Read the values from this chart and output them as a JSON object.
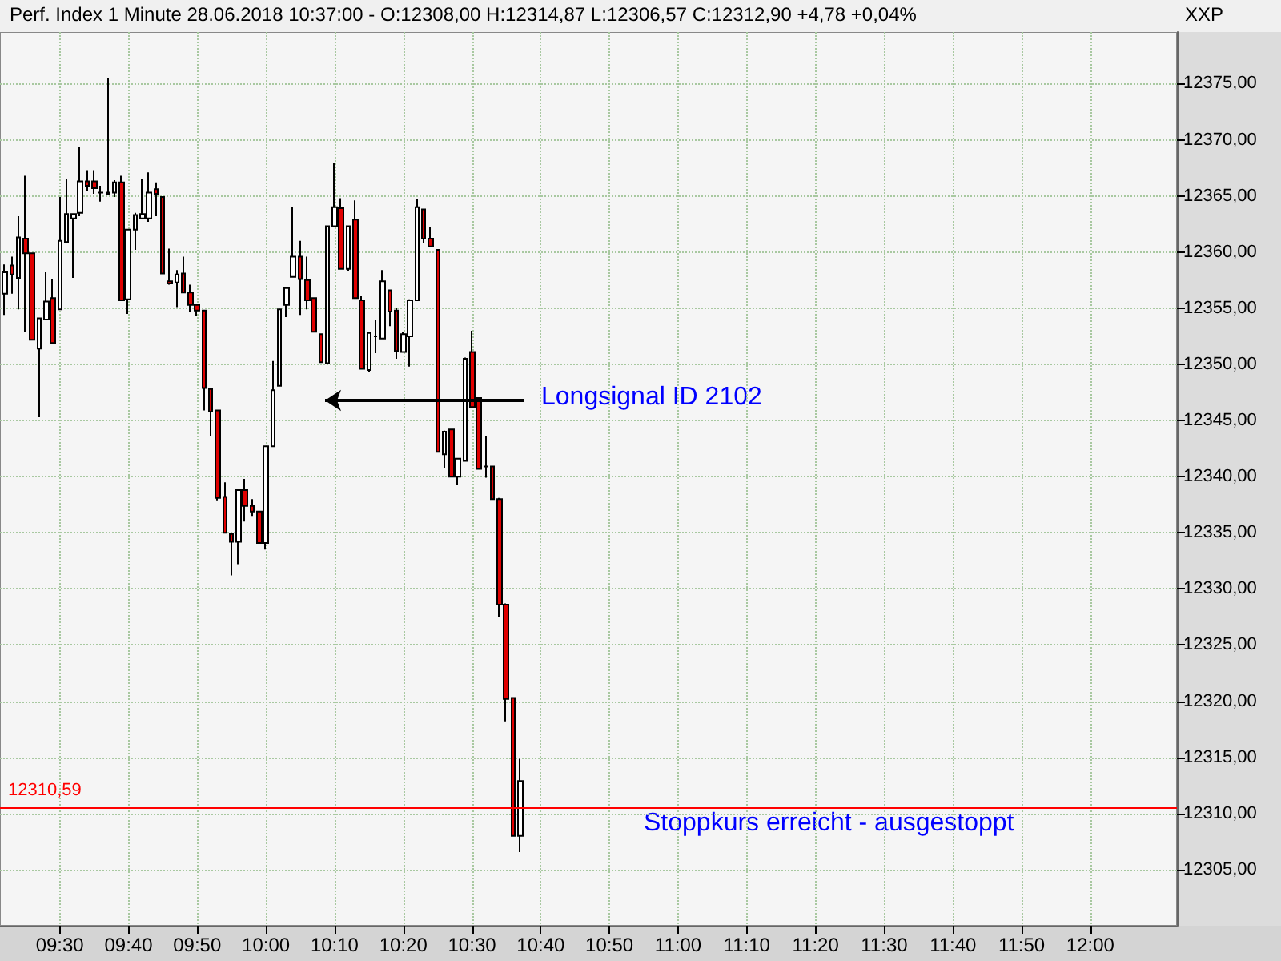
{
  "chart_data": {
    "type": "candlestick",
    "title": "Perf. Index 1 Minute 28.06.2018 10:37:00 - O:12308,00 H:12314,87 L:12306,57 C:12312,90 +4,78 +0,04%",
    "colors": [
      "#ffffff",
      "#e00000",
      "#ffffff",
      "#e00000",
      "#e00000",
      "#ffffff",
      "#ffffff",
      "#e00000",
      "#ffffff",
      "#ffffff",
      "#ffffff",
      "#ffffff",
      "#e00000",
      "#e00000",
      "#000000",
      "#e00000",
      "#ffffff",
      "#e00000",
      "#ffffff",
      "#ffffff",
      "#ffffff",
      "#ffffff",
      "#e00000",
      "#e00000",
      "#e00000",
      "#ffffff",
      "#e00000",
      "#e00000",
      "#e00000",
      "#e00000",
      "#e00000",
      "#e00000",
      "#e00000",
      "#e00000",
      "#ffffff",
      "#e00000",
      "#e00000",
      "#e00000",
      "#ffffff",
      "#ffffff",
      "#ffffff",
      "#ffffff",
      "#ffffff",
      "#e00000",
      "#e00000",
      "#e00000",
      "#e00000",
      "#ffffff",
      "#ffffff",
      "#e00000",
      "#ffffff",
      "#e00000",
      "#e00000",
      "#ffffff",
      "#000000",
      "#ffffff",
      "#e00000",
      "#e00000",
      "#ffffff",
      "#ffffff",
      "#ffffff",
      "#e00000",
      "#e00000",
      "#e00000",
      "#ffffff",
      "#e00000",
      "#ffffff",
      "#ffffff",
      "#e00000",
      "#e00000",
      "#000000",
      "#e00000",
      "#e00000",
      "#e00000",
      "#e00000",
      "#ffffff"
    ],
    "x": [
      9.3667,
      9.3833,
      9.4,
      9.4167,
      9.4333,
      9.45,
      9.4667,
      9.4833,
      9.5,
      9.5167,
      9.5333,
      9.55,
      9.5667,
      9.5833,
      9.6,
      9.6167,
      9.6333,
      9.65,
      9.6667,
      9.6833,
      9.7,
      9.7167,
      9.7333,
      9.75,
      9.7667,
      9.7833,
      9.8,
      9.8167,
      9.8333,
      9.85,
      9.8667,
      9.8833,
      9.9,
      9.9167,
      9.9333,
      9.95,
      9.9667,
      9.9833,
      10,
      10.0167,
      10.0333,
      10.05,
      10.0667,
      10.0833,
      10.1,
      10.1167,
      10.1333,
      10.15,
      10.1667,
      10.1833,
      10.2,
      10.2167,
      10.2333,
      10.25,
      10.2667,
      10.2833,
      10.3,
      10.3167,
      10.3333,
      10.35,
      10.3667,
      10.3833,
      10.4,
      10.4167,
      10.4333,
      10.45,
      10.4667,
      10.4833,
      10.5,
      10.5167,
      10.5333,
      10.55,
      10.5667,
      10.5833,
      10.6,
      10.6167
    ],
    "ohlc": [
      [
        12356.3,
        12358.9,
        12354.4,
        12358.2
      ],
      [
        12358.8,
        12359.6,
        12356.3,
        12358.0
      ],
      [
        12357.7,
        12363.2,
        12354.9,
        12361.3
      ],
      [
        12361.2,
        12366.8,
        12352.9,
        12359.9
      ],
      [
        12359.9,
        12359.9,
        12352.2,
        12352.2
      ],
      [
        12351.4,
        12354.1,
        12345.3,
        12354.1
      ],
      [
        12354.0,
        12358.2,
        12354.0,
        12355.6
      ],
      [
        12355.9,
        12357.6,
        12351.8,
        12351.9
      ],
      [
        12354.9,
        12364.9,
        12354.9,
        12361.0
      ],
      [
        12360.9,
        12366.5,
        12360.9,
        12363.4
      ],
      [
        12363.0,
        12363.4,
        12357.7,
        12363.4
      ],
      [
        12363.5,
        12369.4,
        12363.2,
        12366.3
      ],
      [
        12366.3,
        12367.3,
        12365.4,
        12365.9
      ],
      [
        12366.3,
        12367.3,
        12365.2,
        12365.7
      ],
      [
        12365.3,
        12365.9,
        12364.5,
        12365.3
      ],
      [
        12365.3,
        12375.5,
        12365.2,
        12365.2
      ],
      [
        12365.3,
        12366.4,
        12364.9,
        12366.2
      ],
      [
        12366.2,
        12366.8,
        12355.7,
        12355.7
      ],
      [
        12355.8,
        12362.0,
        12354.5,
        12362.0
      ],
      [
        12362.0,
        12363.5,
        12360.2,
        12363.3
      ],
      [
        12363.0,
        12366.5,
        12363.0,
        12363.4
      ],
      [
        12363.0,
        12367.1,
        12362.7,
        12365.3
      ],
      [
        12365.6,
        12366.2,
        12363.2,
        12365.2
      ],
      [
        12364.9,
        12364.9,
        12358.1,
        12358.1
      ],
      [
        12357.4,
        12360.3,
        12357.1,
        12357.2
      ],
      [
        12357.3,
        12358.4,
        12355.1,
        12358.0
      ],
      [
        12358.1,
        12359.6,
        12356.4,
        12356.4
      ],
      [
        12356.4,
        12357.1,
        12354.7,
        12355.3
      ],
      [
        12355.3,
        12355.3,
        12354.3,
        12354.8
      ],
      [
        12354.8,
        12354.8,
        12345.9,
        12347.9
      ],
      [
        12347.8,
        12347.9,
        12343.6,
        12345.8
      ],
      [
        12345.9,
        12345.9,
        12337.9,
        12338.1
      ],
      [
        12338.2,
        12339.5,
        12335.0,
        12335.0
      ],
      [
        12334.9,
        12334.9,
        12331.2,
        12334.2
      ],
      [
        12334.2,
        12338.8,
        12332.2,
        12338.8
      ],
      [
        12338.8,
        12339.8,
        12336.0,
        12337.4
      ],
      [
        12337.4,
        12338.0,
        12336.5,
        12336.9
      ],
      [
        12336.9,
        12336.9,
        12334.1,
        12334.1
      ],
      [
        12334.1,
        12342.7,
        12333.5,
        12342.7
      ],
      [
        12342.7,
        12350.3,
        12342.7,
        12347.7
      ],
      [
        12348.1,
        12354.9,
        12348.1,
        12354.9
      ],
      [
        12355.3,
        12356.8,
        12354.2,
        12356.8
      ],
      [
        12357.8,
        12364.0,
        12357.8,
        12359.6
      ],
      [
        12359.6,
        12361.0,
        12354.4,
        12357.6
      ],
      [
        12357.5,
        12359.6,
        12354.9,
        12355.7
      ],
      [
        12355.9,
        12355.9,
        12352.9,
        12352.9
      ],
      [
        12352.7,
        12352.7,
        12350.2,
        12350.2
      ],
      [
        12350.1,
        12362.3,
        12350.0,
        12362.3
      ],
      [
        12362.3,
        12367.9,
        12362.3,
        12364.0
      ],
      [
        12363.9,
        12364.8,
        12358.5,
        12358.5
      ],
      [
        12358.5,
        12362.3,
        12358.3,
        12362.3
      ],
      [
        12362.9,
        12364.6,
        12355.9,
        12355.9
      ],
      [
        12355.7,
        12356.1,
        12349.6,
        12349.6
      ],
      [
        12349.5,
        12352.8,
        12349.3,
        12352.8
      ],
      [
        12352.5,
        12354.0,
        12351.0,
        12352.5
      ],
      [
        12352.3,
        12358.4,
        12352.3,
        12357.4
      ],
      [
        12356.6,
        12356.6,
        12353.4,
        12354.7
      ],
      [
        12354.8,
        12355.0,
        12350.5,
        12351.2
      ],
      [
        12351.1,
        12352.9,
        12351.1,
        12352.7
      ],
      [
        12352.5,
        12355.8,
        12349.8,
        12355.7
      ],
      [
        12355.7,
        12364.7,
        12355.7,
        12364.0
      ],
      [
        12363.8,
        12363.8,
        12360.8,
        12361.2
      ],
      [
        12361.2,
        12362.2,
        12360.5,
        12360.5
      ],
      [
        12360.2,
        12360.2,
        12342.2,
        12342.2
      ],
      [
        12342.0,
        12344.1,
        12340.8,
        12344.0
      ],
      [
        12344.2,
        12344.2,
        12340.0,
        12340.0
      ],
      [
        12340.0,
        12341.6,
        12339.3,
        12341.6
      ],
      [
        12341.4,
        12350.6,
        12341.4,
        12350.5
      ],
      [
        12351.1,
        12353.0,
        12346.2,
        12346.2
      ],
      [
        12347.0,
        12347.0,
        12340.7,
        12340.7
      ],
      [
        12340.9,
        12343.6,
        12339.9,
        12340.9
      ],
      [
        12340.9,
        12340.9,
        12338.0,
        12338.0
      ],
      [
        12338.0,
        12338.1,
        12327.5,
        12328.6
      ],
      [
        12328.6,
        12328.7,
        12318.2,
        12320.2
      ],
      [
        12320.3,
        12320.3,
        12308.0,
        12308.0
      ],
      [
        12308.0,
        12314.87,
        12306.57,
        12312.9
      ]
    ],
    "xlim": [
      9.355,
      12.21
    ],
    "xticks": [
      {
        "value": 9.5,
        "label": "09:30"
      },
      {
        "value": 9.6667,
        "label": "09:40"
      },
      {
        "value": 9.8333,
        "label": "09:50"
      },
      {
        "value": 10,
        "label": "10:00"
      },
      {
        "value": 10.1667,
        "label": "10:10"
      },
      {
        "value": 10.3333,
        "label": "10:20"
      },
      {
        "value": 10.5,
        "label": "10:30"
      },
      {
        "value": 10.6667,
        "label": "10:40"
      },
      {
        "value": 10.8333,
        "label": "10:50"
      },
      {
        "value": 11,
        "label": "11:00"
      },
      {
        "value": 11.1667,
        "label": "11:10"
      },
      {
        "value": 11.3333,
        "label": "11:20"
      },
      {
        "value": 11.5,
        "label": "11:30"
      },
      {
        "value": 11.6667,
        "label": "11:40"
      },
      {
        "value": 11.8333,
        "label": "11:50"
      },
      {
        "value": 12,
        "label": "12:00"
      }
    ],
    "ylim": [
      12300,
      12379.6
    ],
    "yticks": [
      {
        "value": 12305,
        "label": "12305,00"
      },
      {
        "value": 12310,
        "label": "12310,00"
      },
      {
        "value": 12315,
        "label": "12315,00"
      },
      {
        "value": 12320,
        "label": "12320,00"
      },
      {
        "value": 12325,
        "label": "12325,00"
      },
      {
        "value": 12330,
        "label": "12330,00"
      },
      {
        "value": 12335,
        "label": "12335,00"
      },
      {
        "value": 12340,
        "label": "12340,00"
      },
      {
        "value": 12345,
        "label": "12345,00"
      },
      {
        "value": 12350,
        "label": "12350,00"
      },
      {
        "value": 12355,
        "label": "12355,00"
      },
      {
        "value": 12360,
        "label": "12360,00"
      },
      {
        "value": 12365,
        "label": "12365,00"
      },
      {
        "value": 12370,
        "label": "12370,00"
      },
      {
        "value": 12375,
        "label": "12375,00"
      }
    ],
    "grid": true,
    "ref_lines": [
      {
        "axis": "y",
        "value": 12310.59,
        "label": "12310,59",
        "color": "#ff0000"
      }
    ],
    "annotations": [
      "Longsignal ID 2102",
      "Stoppkurs erreicht - ausgestoppt",
      "XXP"
    ]
  }
}
